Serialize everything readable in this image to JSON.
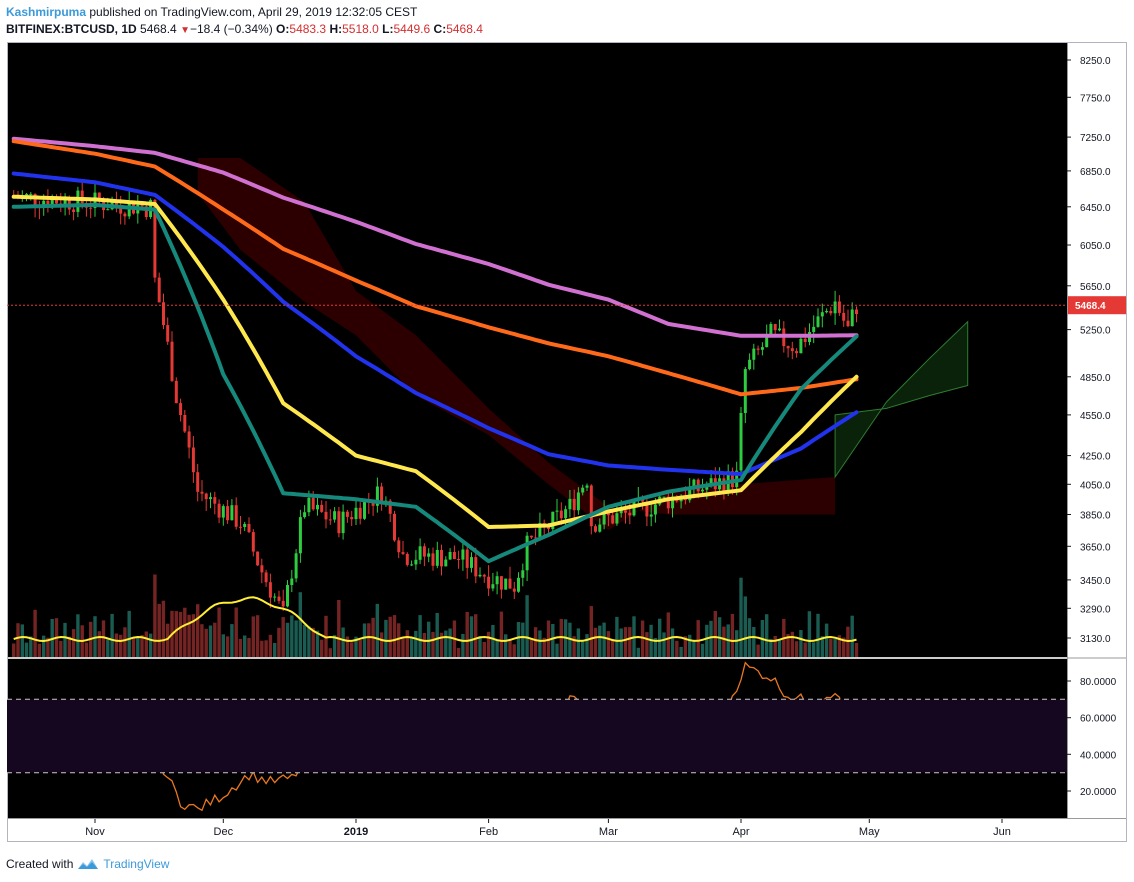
{
  "header": {
    "author": "Kashmirpuma",
    "published_text": "published on TradingView.com, April 29, 2019 12:32:05 CEST",
    "symbol": "BITFINEX:BTCUSD, 1D",
    "last": "5468.4",
    "change": "−18.4 (−0.34%)",
    "o_label": "O:",
    "o_value": "5483.3",
    "h_label": "H:",
    "h_value": "5518.0",
    "l_label": "L:",
    "l_value": "5449.6",
    "c_label": "C:",
    "c_value": "5468.4"
  },
  "footer": {
    "created_with": "Created with",
    "brand": "TradingView"
  },
  "colors": {
    "background": "#000000",
    "up_candle": "#2ecc40",
    "down_candle": "#e53935",
    "ema200": "#d070d0",
    "ema100": "#ff6a1a",
    "ema50": "#2233ee",
    "ema21": "#ffe84d",
    "ema13": "#16897d",
    "rsi": "#e87722",
    "volume_ma": "#ffee33",
    "price_line": "#e53935"
  },
  "chart_data": [
    {
      "type": "candlestick",
      "title": "",
      "price_axis_ticks": [
        "8250.0",
        "7750.0",
        "7250.0",
        "6850.0",
        "6450.0",
        "6050.0",
        "5650.0",
        "5250.0",
        "4850.0",
        "4550.0",
        "4250.0",
        "4050.0",
        "3850.0",
        "3650.0",
        "3450.0",
        "3290.0",
        "3130.0"
      ],
      "current_price_label": "5468.4",
      "x_axis_labels": [
        "Nov",
        "Dec",
        "2019",
        "Feb",
        "Mar",
        "Apr",
        "May",
        "Jun"
      ],
      "ylim": [
        3000,
        8500
      ],
      "series": [
        {
          "name": "",
          "kind": "ma",
          "color_key": "ema200",
          "points": [
            [
              "2018-10-13",
              7230
            ],
            [
              "2018-11-01",
              7140
            ],
            [
              "2018-11-15",
              7060
            ],
            [
              "2018-12-01",
              6830
            ],
            [
              "2018-12-15",
              6550
            ],
            [
              "2019-01-01",
              6290
            ],
            [
              "2019-01-15",
              6060
            ],
            [
              "2019-02-01",
              5860
            ],
            [
              "2019-02-15",
              5660
            ],
            [
              "2019-03-01",
              5520
            ],
            [
              "2019-03-15",
              5300
            ],
            [
              "2019-04-01",
              5195
            ],
            [
              "2019-04-15",
              5195
            ],
            [
              "2019-04-28",
              5200
            ]
          ]
        },
        {
          "name": "",
          "kind": "ma",
          "color_key": "ema100",
          "points": [
            [
              "2018-10-13",
              7200
            ],
            [
              "2018-11-01",
              7050
            ],
            [
              "2018-11-15",
              6900
            ],
            [
              "2018-12-01",
              6420
            ],
            [
              "2018-12-15",
              6010
            ],
            [
              "2019-01-01",
              5700
            ],
            [
              "2019-01-15",
              5460
            ],
            [
              "2019-02-01",
              5270
            ],
            [
              "2019-02-15",
              5130
            ],
            [
              "2019-03-01",
              5020
            ],
            [
              "2019-03-15",
              4880
            ],
            [
              "2019-04-01",
              4710
            ],
            [
              "2019-04-15",
              4760
            ],
            [
              "2019-04-28",
              4830
            ]
          ]
        },
        {
          "name": "",
          "kind": "ma",
          "color_key": "ema50",
          "points": [
            [
              "2018-10-13",
              6820
            ],
            [
              "2018-11-01",
              6720
            ],
            [
              "2018-11-15",
              6580
            ],
            [
              "2018-12-01",
              6030
            ],
            [
              "2018-12-15",
              5500
            ],
            [
              "2019-01-01",
              5020
            ],
            [
              "2019-01-15",
              4720
            ],
            [
              "2019-02-01",
              4450
            ],
            [
              "2019-02-15",
              4260
            ],
            [
              "2019-03-01",
              4180
            ],
            [
              "2019-03-15",
              4150
            ],
            [
              "2019-04-01",
              4120
            ],
            [
              "2019-04-15",
              4300
            ],
            [
              "2019-04-28",
              4570
            ]
          ]
        },
        {
          "name": "",
          "kind": "ma",
          "color_key": "ema21",
          "points": [
            [
              "2018-10-13",
              6560
            ],
            [
              "2018-11-01",
              6530
            ],
            [
              "2018-11-15",
              6480
            ],
            [
              "2018-12-01",
              5520
            ],
            [
              "2018-12-15",
              4640
            ],
            [
              "2019-01-01",
              4250
            ],
            [
              "2019-01-15",
              4140
            ],
            [
              "2019-02-01",
              3770
            ],
            [
              "2019-02-15",
              3780
            ],
            [
              "2019-03-01",
              3870
            ],
            [
              "2019-03-15",
              3950
            ],
            [
              "2019-04-01",
              4010
            ],
            [
              "2019-04-15",
              4420
            ],
            [
              "2019-04-28",
              4850
            ]
          ]
        },
        {
          "name": "",
          "kind": "ma",
          "color_key": "ema13",
          "points": [
            [
              "2018-10-13",
              6450
            ],
            [
              "2018-11-01",
              6470
            ],
            [
              "2018-11-15",
              6420
            ],
            [
              "2018-12-01",
              4870
            ],
            [
              "2018-12-15",
              3990
            ],
            [
              "2019-01-01",
              3950
            ],
            [
              "2019-01-15",
              3900
            ],
            [
              "2019-02-01",
              3560
            ],
            [
              "2019-02-15",
              3720
            ],
            [
              "2019-03-01",
              3900
            ],
            [
              "2019-03-15",
              4000
            ],
            [
              "2019-04-01",
              4080
            ],
            [
              "2019-04-15",
              4750
            ],
            [
              "2019-04-28",
              5190
            ]
          ]
        }
      ]
    },
    {
      "type": "line",
      "title": "",
      "series": [
        {
          "name": "",
          "color_key": "rsi"
        }
      ],
      "y_axis_ticks": [
        "80.0000",
        "60.0000",
        "40.0000",
        "20.0000"
      ],
      "ylim": [
        5,
        95
      ],
      "bands": [
        30,
        70
      ],
      "points": [
        [
          "2018-10-13",
          38
        ],
        [
          "2018-10-20",
          52
        ],
        [
          "2018-11-01",
          48
        ],
        [
          "2018-11-10",
          50
        ],
        [
          "2018-11-17",
          32
        ],
        [
          "2018-11-21",
          14
        ],
        [
          "2018-11-25",
          10
        ],
        [
          "2018-12-01",
          18
        ],
        [
          "2018-12-07",
          29
        ],
        [
          "2018-12-12",
          25
        ],
        [
          "2018-12-17",
          27
        ],
        [
          "2018-12-22",
          41
        ],
        [
          "2018-12-28",
          52
        ],
        [
          "2019-01-05",
          51
        ],
        [
          "2019-01-12",
          38
        ],
        [
          "2019-01-20",
          41
        ],
        [
          "2019-01-28",
          36
        ],
        [
          "2019-02-05",
          40
        ],
        [
          "2019-02-10",
          50
        ],
        [
          "2019-02-15",
          53
        ],
        [
          "2019-02-20",
          72
        ],
        [
          "2019-02-25",
          58
        ],
        [
          "2019-03-05",
          56
        ],
        [
          "2019-03-12",
          55
        ],
        [
          "2019-03-20",
          58
        ],
        [
          "2019-03-27",
          56
        ],
        [
          "2019-04-02",
          88
        ],
        [
          "2019-04-08",
          82
        ],
        [
          "2019-04-12",
          72
        ],
        [
          "2019-04-18",
          68
        ],
        [
          "2019-04-23",
          75
        ],
        [
          "2019-04-26",
          57
        ],
        [
          "2019-04-28",
          63
        ]
      ]
    }
  ]
}
